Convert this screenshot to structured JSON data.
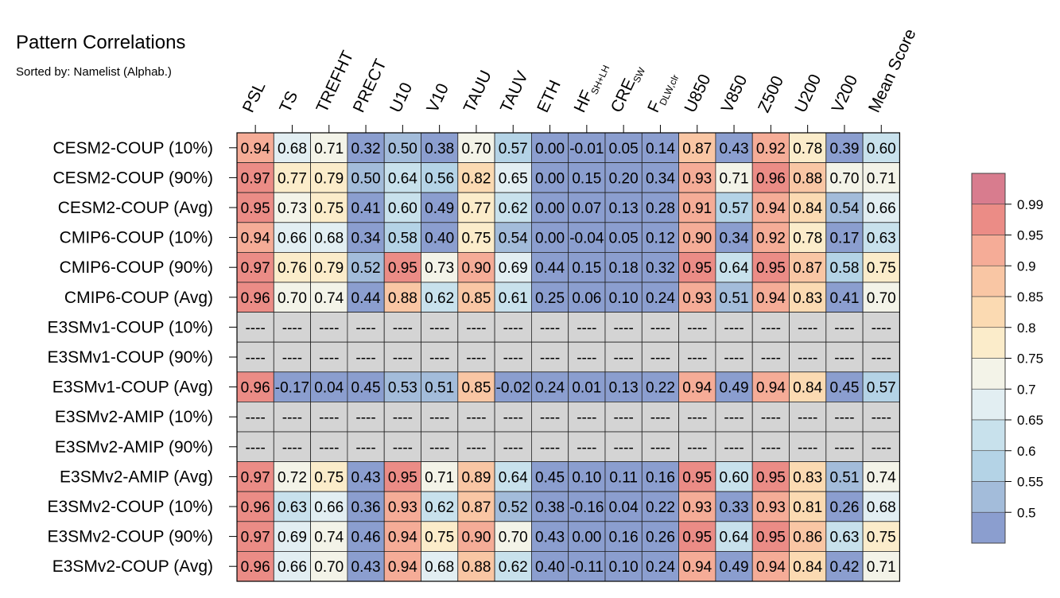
{
  "chart_data": {
    "type": "heatmap",
    "title": "Pattern Correlations",
    "subtitle": "Sorted by: Namelist (Alphab.)",
    "columns": [
      {
        "base": "PSL",
        "sub": ""
      },
      {
        "base": "TS",
        "sub": ""
      },
      {
        "base": "TREFHT",
        "sub": ""
      },
      {
        "base": "PRECT",
        "sub": ""
      },
      {
        "base": "U10",
        "sub": ""
      },
      {
        "base": "V10",
        "sub": ""
      },
      {
        "base": "TAUU",
        "sub": ""
      },
      {
        "base": "TAUV",
        "sub": ""
      },
      {
        "base": "ETH",
        "sub": ""
      },
      {
        "base": "HF",
        "sub": "SH+LH"
      },
      {
        "base": "CRE",
        "sub": "SW"
      },
      {
        "base": "F",
        "sub": "DLW,clr"
      },
      {
        "base": "U850",
        "sub": ""
      },
      {
        "base": "V850",
        "sub": ""
      },
      {
        "base": "Z500",
        "sub": ""
      },
      {
        "base": "U200",
        "sub": ""
      },
      {
        "base": "V200",
        "sub": ""
      },
      {
        "base": "Mean Score",
        "sub": ""
      }
    ],
    "rows": [
      "CESM2-COUP (10%)",
      "CESM2-COUP (90%)",
      "CESM2-COUP (Avg)",
      "CMIP6-COUP (10%)",
      "CMIP6-COUP (90%)",
      "CMIP6-COUP (Avg)",
      "E3SMv1-COUP (10%)",
      "E3SMv1-COUP (90%)",
      "E3SMv1-COUP (Avg)",
      "E3SMv2-AMIP (10%)",
      "E3SMv2-AMIP (90%)",
      "E3SMv2-AMIP (Avg)",
      "E3SMv2-COUP (10%)",
      "E3SMv2-COUP (90%)",
      "E3SMv2-COUP (Avg)"
    ],
    "values": [
      [
        "0.94",
        "0.68",
        "0.71",
        "0.32",
        "0.50",
        "0.38",
        "0.70",
        "0.57",
        "0.00",
        "-0.01",
        "0.05",
        "0.14",
        "0.87",
        "0.43",
        "0.92",
        "0.78",
        "0.39",
        "0.60"
      ],
      [
        "0.97",
        "0.77",
        "0.79",
        "0.50",
        "0.64",
        "0.56",
        "0.82",
        "0.65",
        "0.00",
        "0.15",
        "0.20",
        "0.34",
        "0.93",
        "0.71",
        "0.96",
        "0.88",
        "0.70",
        "0.71"
      ],
      [
        "0.95",
        "0.73",
        "0.75",
        "0.41",
        "0.60",
        "0.49",
        "0.77",
        "0.62",
        "0.00",
        "0.07",
        "0.13",
        "0.28",
        "0.91",
        "0.57",
        "0.94",
        "0.84",
        "0.54",
        "0.66"
      ],
      [
        "0.94",
        "0.66",
        "0.68",
        "0.34",
        "0.58",
        "0.40",
        "0.75",
        "0.54",
        "0.00",
        "-0.04",
        "0.05",
        "0.12",
        "0.90",
        "0.34",
        "0.92",
        "0.78",
        "0.17",
        "0.63"
      ],
      [
        "0.97",
        "0.76",
        "0.79",
        "0.52",
        "0.95",
        "0.73",
        "0.90",
        "0.69",
        "0.44",
        "0.15",
        "0.18",
        "0.32",
        "0.95",
        "0.64",
        "0.95",
        "0.87",
        "0.58",
        "0.75"
      ],
      [
        "0.96",
        "0.70",
        "0.74",
        "0.44",
        "0.88",
        "0.62",
        "0.85",
        "0.61",
        "0.25",
        "0.06",
        "0.10",
        "0.24",
        "0.93",
        "0.51",
        "0.94",
        "0.83",
        "0.41",
        "0.70"
      ],
      [
        "----",
        "----",
        "----",
        "----",
        "----",
        "----",
        "----",
        "----",
        "----",
        "----",
        "----",
        "----",
        "----",
        "----",
        "----",
        "----",
        "----",
        "----"
      ],
      [
        "----",
        "----",
        "----",
        "----",
        "----",
        "----",
        "----",
        "----",
        "----",
        "----",
        "----",
        "----",
        "----",
        "----",
        "----",
        "----",
        "----",
        "----"
      ],
      [
        "0.96",
        "-0.17",
        "0.04",
        "0.45",
        "0.53",
        "0.51",
        "0.85",
        "-0.02",
        "0.24",
        "0.01",
        "0.13",
        "0.22",
        "0.94",
        "0.49",
        "0.94",
        "0.84",
        "0.45",
        "0.57"
      ],
      [
        "----",
        "----",
        "----",
        "----",
        "----",
        "----",
        "----",
        "----",
        "----",
        "----",
        "----",
        "----",
        "----",
        "----",
        "----",
        "----",
        "----",
        "----"
      ],
      [
        "----",
        "----",
        "----",
        "----",
        "----",
        "----",
        "----",
        "----",
        "----",
        "----",
        "----",
        "----",
        "----",
        "----",
        "----",
        "----",
        "----",
        "----"
      ],
      [
        "0.97",
        "0.72",
        "0.75",
        "0.43",
        "0.95",
        "0.71",
        "0.89",
        "0.64",
        "0.45",
        "0.10",
        "0.11",
        "0.16",
        "0.95",
        "0.60",
        "0.95",
        "0.83",
        "0.51",
        "0.74"
      ],
      [
        "0.96",
        "0.63",
        "0.66",
        "0.36",
        "0.93",
        "0.62",
        "0.87",
        "0.52",
        "0.38",
        "-0.16",
        "0.04",
        "0.22",
        "0.93",
        "0.33",
        "0.93",
        "0.81",
        "0.26",
        "0.68"
      ],
      [
        "0.97",
        "0.69",
        "0.74",
        "0.46",
        "0.94",
        "0.75",
        "0.90",
        "0.70",
        "0.43",
        "0.00",
        "0.16",
        "0.26",
        "0.95",
        "0.64",
        "0.95",
        "0.86",
        "0.63",
        "0.75"
      ],
      [
        "0.96",
        "0.66",
        "0.70",
        "0.43",
        "0.94",
        "0.68",
        "0.88",
        "0.62",
        "0.40",
        "-0.11",
        "0.10",
        "0.24",
        "0.94",
        "0.49",
        "0.94",
        "0.84",
        "0.42",
        "0.71"
      ]
    ],
    "missing_color": "#d4d4d4",
    "colorbar": {
      "levels": [
        "0.99",
        "0.95",
        "0.9",
        "0.85",
        "0.8",
        "0.75",
        "0.7",
        "0.65",
        "0.6",
        "0.55",
        "0.5"
      ],
      "thresholds": [
        0.99,
        0.95,
        0.9,
        0.85,
        0.8,
        0.75,
        0.7,
        0.65,
        0.6,
        0.55,
        0.5
      ],
      "colors": [
        "#d87c8e",
        "#eb8c86",
        "#f5ac97",
        "#f9c6a4",
        "#fbdab2",
        "#fbecca",
        "#f3f3e8",
        "#e2eef2",
        "#c8e1ec",
        "#b4d3e6",
        "#a3bcda",
        "#8b9ecf"
      ]
    }
  }
}
